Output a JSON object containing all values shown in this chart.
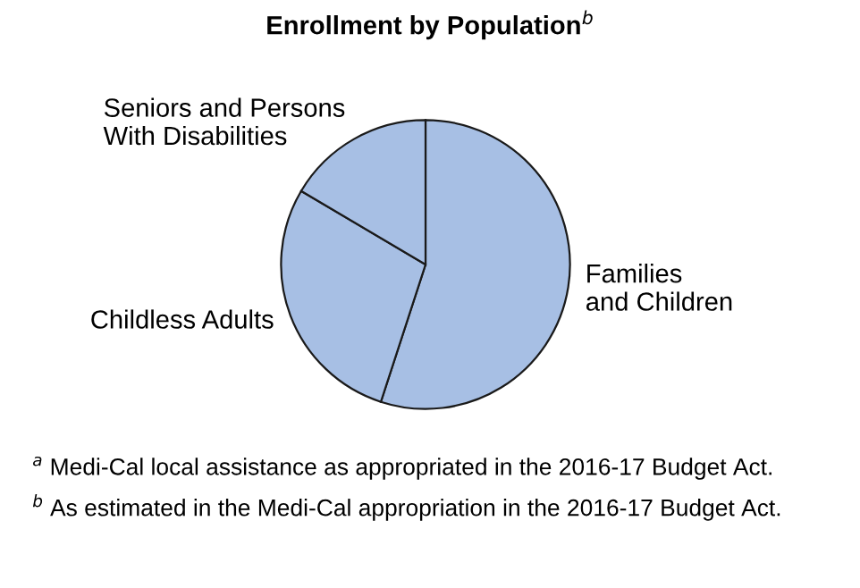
{
  "chart_data": {
    "type": "pie",
    "title": "Enrollment by Population$^{b}$",
    "categories": [
      "Families\nand Children",
      "Childless Adults",
      "Seniors and Persons\nWith Disabilities"
    ],
    "values": [
      55,
      28.5,
      16.5
    ],
    "colors": [
      "#a7bfe4",
      "#a7bfe4",
      "#a7bfe4"
    ],
    "annotations": [
      "$^{a}$ Medi-Cal local assistance as appropriated in the 2016-17 Budget Act.",
      "$^{b}$ As estimated in the Medi-Cal appropriation in the 2016-17 Budget Act."
    ]
  }
}
